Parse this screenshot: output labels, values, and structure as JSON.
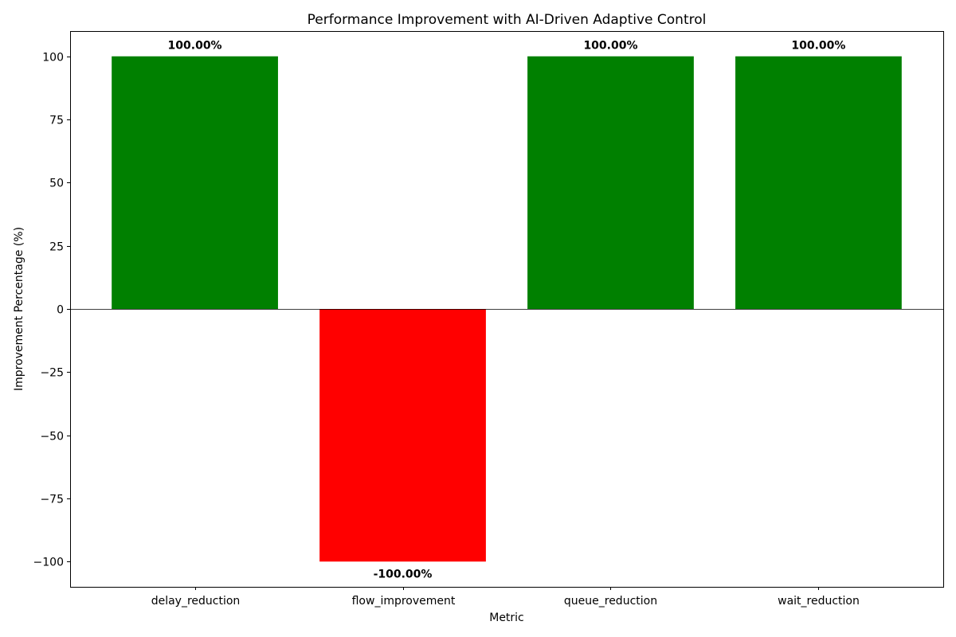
{
  "chart_data": {
    "type": "bar",
    "title": "Performance Improvement with AI-Driven Adaptive Control",
    "xlabel": "Metric",
    "ylabel": "Improvement Percentage (%)",
    "categories": [
      "delay_reduction",
      "flow_improvement",
      "queue_reduction",
      "wait_reduction"
    ],
    "values": [
      100,
      -100,
      100,
      100
    ],
    "data_labels": [
      "100.00%",
      "-100.00%",
      "100.00%",
      "100.00%"
    ],
    "ylim": [
      -110,
      110
    ],
    "yticks": [
      100,
      75,
      50,
      25,
      0,
      -25,
      -50,
      -75,
      -100
    ],
    "ytick_labels": [
      "100",
      "75",
      "50",
      "25",
      "0",
      "−25",
      "−50",
      "−75",
      "−100"
    ],
    "colors": {
      "positive": "#008000",
      "negative": "#ff0000",
      "zero_line": "#000000"
    },
    "grid": false,
    "legend": "none"
  }
}
